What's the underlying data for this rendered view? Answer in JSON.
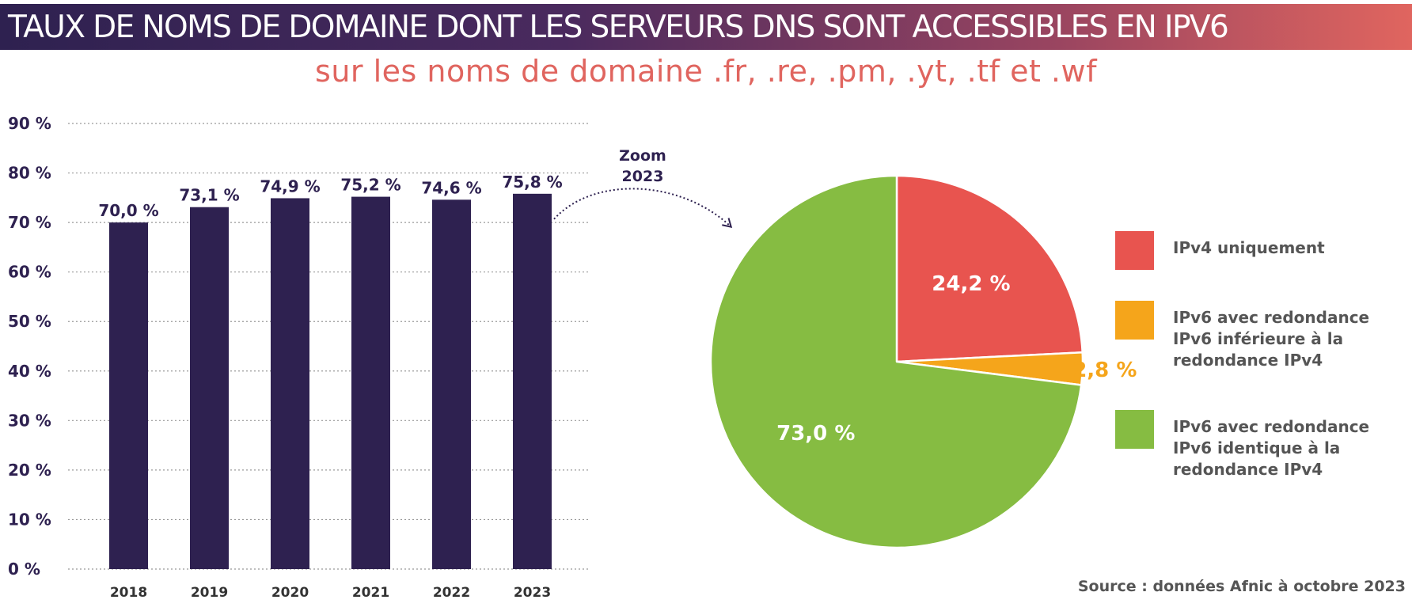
{
  "title": "TAUX DE NOMS DE DOMAINE DONT LES SERVEURS DNS SONT ACCESSIBLES EN IPV6",
  "subtitle": "sur les noms de domaine .fr, .re, .pm, .yt, .tf et .wf",
  "source": "Source : données Afnic à octobre 2023",
  "zoom_annotation": [
    "Zoom",
    "2023"
  ],
  "colors": {
    "bar": "#2e2150",
    "red": "#e8544f",
    "orange": "#f5a51b",
    "green": "#86bc42",
    "grid": "#999999"
  },
  "chart_data": [
    {
      "type": "bar",
      "categories": [
        "2018",
        "2019",
        "2020",
        "2021",
        "2022",
        "2023"
      ],
      "values": [
        70.0,
        73.1,
        74.9,
        75.2,
        74.6,
        75.8
      ],
      "value_labels": [
        "70,0 %",
        "73,1 %",
        "74,9 %",
        "75,2 %",
        "74,6 %",
        "75,8 %"
      ],
      "ylim": [
        0,
        90
      ],
      "yticks": [
        0,
        10,
        20,
        30,
        40,
        50,
        60,
        70,
        80,
        90
      ],
      "ytick_labels": [
        "0 %",
        "10 %",
        "20 %",
        "30 %",
        "40 %",
        "50 %",
        "60 %",
        "70 %",
        "80 %",
        "90 %"
      ],
      "grid": true,
      "grid_style": "dotted"
    },
    {
      "type": "pie",
      "labels": [
        "IPv4 uniquement",
        "IPv6 avec redondance IPv6 inférieure à la redondance IPv4",
        "IPv6 avec redondance IPv6 identique à la redondance IPv4"
      ],
      "values": [
        24.2,
        2.8,
        73.0
      ],
      "value_labels": [
        "24,2 %",
        "2,8 %",
        "73,0 %"
      ],
      "legend": [
        {
          "lines": [
            "IPv4 uniquement"
          ],
          "color": "#e8544f"
        },
        {
          "lines": [
            "IPv6 avec redondance",
            "IPv6 inférieure à la",
            "redondance IPv4"
          ],
          "color": "#f5a51b"
        },
        {
          "lines": [
            "IPv6 avec redondance",
            "IPv6 identique à la",
            "redondance IPv4"
          ],
          "color": "#86bc42"
        }
      ],
      "legend_position": "right"
    }
  ]
}
